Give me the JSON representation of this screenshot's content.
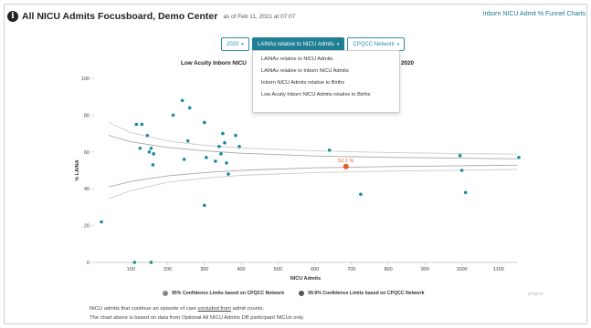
{
  "header": {
    "title": "All NICU Admits Focusboard, Demo Center",
    "as_of": "as of Feb 11, 2021 at 07:07",
    "funnel_link": "Inborn NICU Admit % Funnel Charts"
  },
  "controls": {
    "year": "2020",
    "metric": "LAINAs relative to NICU Admits",
    "network": "CPQCC Network"
  },
  "dropdown": {
    "items": [
      "LAINAs relative to NICU Admits",
      "LAINAs relative to Inborn NICU Admits",
      "Inborn NICU Admits relative to Births",
      "Low Acuity Inborn NICU Admits relative to Births"
    ]
  },
  "chart_title": {
    "left": "Low Acuity Inborn NICU",
    "right": "2020"
  },
  "chart_data": {
    "type": "scatter",
    "xlabel": "NICU Admits",
    "ylabel": "% LAINA",
    "xlim": [
      0,
      1150
    ],
    "ylim": [
      0,
      100
    ],
    "xticks": [
      100,
      200,
      300,
      400,
      500,
      600,
      700,
      800,
      900,
      1000,
      1100
    ],
    "yticks": [
      0,
      20,
      40,
      60,
      80,
      100
    ],
    "grid": false,
    "legend_position": "bottom",
    "points": [
      {
        "x": 20,
        "y": 22
      },
      {
        "x": 110,
        "y": 0
      },
      {
        "x": 155,
        "y": 0
      },
      {
        "x": 115,
        "y": 75
      },
      {
        "x": 130,
        "y": 75
      },
      {
        "x": 125,
        "y": 62
      },
      {
        "x": 145,
        "y": 69
      },
      {
        "x": 150,
        "y": 60
      },
      {
        "x": 155,
        "y": 62
      },
      {
        "x": 160,
        "y": 53
      },
      {
        "x": 162,
        "y": 59
      },
      {
        "x": 215,
        "y": 80
      },
      {
        "x": 240,
        "y": 88
      },
      {
        "x": 245,
        "y": 56
      },
      {
        "x": 255,
        "y": 66
      },
      {
        "x": 260,
        "y": 84
      },
      {
        "x": 300,
        "y": 76
      },
      {
        "x": 300,
        "y": 31
      },
      {
        "x": 305,
        "y": 57
      },
      {
        "x": 330,
        "y": 55
      },
      {
        "x": 340,
        "y": 63
      },
      {
        "x": 345,
        "y": 59
      },
      {
        "x": 350,
        "y": 70
      },
      {
        "x": 355,
        "y": 65
      },
      {
        "x": 360,
        "y": 54
      },
      {
        "x": 365,
        "y": 48
      },
      {
        "x": 385,
        "y": 69
      },
      {
        "x": 395,
        "y": 63
      },
      {
        "x": 640,
        "y": 61
      },
      {
        "x": 725,
        "y": 37
      },
      {
        "x": 995,
        "y": 58
      },
      {
        "x": 1000,
        "y": 50
      },
      {
        "x": 1010,
        "y": 38
      },
      {
        "x": 1155,
        "y": 57
      }
    ],
    "highlight": {
      "x": 685,
      "y": 52.1,
      "label": "52.1 %",
      "color": "#e35b26"
    },
    "series": [
      {
        "name": "95% Confidence Limits based on CPQCC Network",
        "color": "#a8a8a8",
        "upper": [
          [
            40,
            69
          ],
          [
            100,
            65.5
          ],
          [
            200,
            62.5
          ],
          [
            300,
            60.6
          ],
          [
            400,
            59.3
          ],
          [
            600,
            57.8
          ],
          [
            800,
            57.1
          ],
          [
            1000,
            56.6
          ],
          [
            1150,
            56.3
          ]
        ],
        "lower": [
          [
            40,
            41
          ],
          [
            100,
            44
          ],
          [
            200,
            47
          ],
          [
            300,
            48.8
          ],
          [
            400,
            50
          ],
          [
            600,
            51.4
          ],
          [
            800,
            52.1
          ],
          [
            1000,
            52.5
          ],
          [
            1150,
            52.8
          ]
        ]
      },
      {
        "name": "99.9% Confidence Limits based on CPQCC Network",
        "color": "#cccccc",
        "upper": [
          [
            40,
            76
          ],
          [
            100,
            70.5
          ],
          [
            200,
            66
          ],
          [
            300,
            63.6
          ],
          [
            400,
            62.2
          ],
          [
            600,
            60.6
          ],
          [
            800,
            59.7
          ],
          [
            1000,
            59.1
          ],
          [
            1150,
            58.8
          ]
        ],
        "lower": [
          [
            40,
            34.5
          ],
          [
            100,
            39
          ],
          [
            200,
            43.5
          ],
          [
            300,
            45.8
          ],
          [
            400,
            47.3
          ],
          [
            600,
            48.8
          ],
          [
            800,
            49.6
          ],
          [
            1000,
            50.1
          ],
          [
            1150,
            50.5
          ]
        ]
      }
    ],
    "point_color": "#1b8aa0",
    "credits": "CPQCC"
  },
  "footnote": {
    "line1_a": "NICU admits that continue an episode of care ",
    "line1_link": "excluded from",
    "line1_b": " admit counts.",
    "line2": "The chart above is based on data from Optional All NICU Admits DB participant NICUs only."
  }
}
